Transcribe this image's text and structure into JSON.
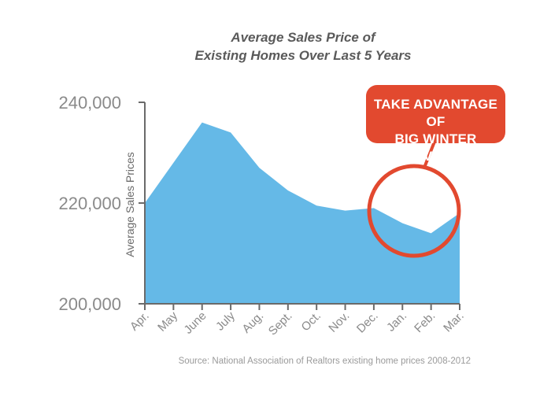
{
  "title_line1": "Average Sales Price of",
  "title_line2": "Existing Homes Over Last 5 Years",
  "source": "Source: National Association of Realtors existing home prices 2008-2012",
  "callout": {
    "line1": "TAKE ADVANTAGE OF",
    "line2": "BIG WINTER SAVINGS"
  },
  "colors": {
    "area": "#65b9e7",
    "axis": "#6a6a6a",
    "callout": "#e2492f",
    "tick_text": "#8a8a8a",
    "ylabel_text": "#6a6a6a"
  },
  "chart_data": {
    "type": "area",
    "title": "Average Sales Price of Existing Homes Over Last 5 Years",
    "xlabel": "",
    "ylabel": "Average Sales Prices",
    "categories": [
      "Apr.",
      "May",
      "June",
      "July",
      "Aug.",
      "Sept.",
      "Oct.",
      "Nov.",
      "Dec.",
      "Jan.",
      "Feb.",
      "Mar."
    ],
    "values": [
      220000,
      228000,
      236000,
      234000,
      227000,
      222500,
      219500,
      218500,
      219000,
      216000,
      214000,
      218000
    ],
    "ylim": [
      200000,
      240000
    ],
    "yticks": [
      200000,
      220000,
      240000
    ],
    "ytick_labels": [
      "200,000",
      "220,000",
      "240,000"
    ],
    "grid": false,
    "legend": "none"
  }
}
